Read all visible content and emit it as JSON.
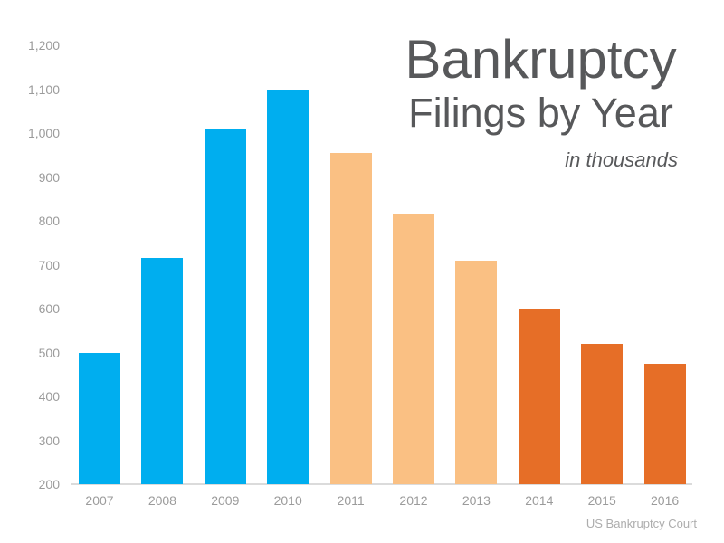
{
  "window": {
    "background": "#ffffff"
  },
  "title": {
    "line1": "Bankruptcy",
    "line2": "Filings by Year",
    "subtitle": "in thousands"
  },
  "source_label": "US Bankruptcy Court",
  "colors": {
    "blue_bar": "#00aeef",
    "light_orange_bar": "#fac083",
    "dark_orange_bar": "#e66e27",
    "title_text": "#57585a",
    "axis_text": "#9b9b9b",
    "axis_line": "#dbdbdb",
    "source_text": "#adadad"
  },
  "chart_data": {
    "type": "bar",
    "title": "Bankruptcy Filings by Year",
    "subtitle": "in thousands",
    "categories": [
      "2007",
      "2008",
      "2009",
      "2010",
      "2011",
      "2012",
      "2013",
      "2014",
      "2015",
      "2016"
    ],
    "values": [
      500,
      715,
      1010,
      1100,
      955,
      815,
      710,
      600,
      520,
      475
    ],
    "bar_colors": [
      "#00aeef",
      "#00aeef",
      "#00aeef",
      "#00aeef",
      "#fac083",
      "#fac083",
      "#fac083",
      "#e66e27",
      "#e66e27",
      "#e66e27"
    ],
    "xlabel": "",
    "ylabel": "",
    "ylim": [
      200,
      1200
    ],
    "ytick_step": 100,
    "ytick_labels": [
      "1,200",
      "1,100",
      "1,000",
      "900",
      "800",
      "700",
      "600",
      "500",
      "400",
      "300",
      "200"
    ],
    "grid": false,
    "legend": false,
    "source": "US Bankruptcy Court"
  }
}
